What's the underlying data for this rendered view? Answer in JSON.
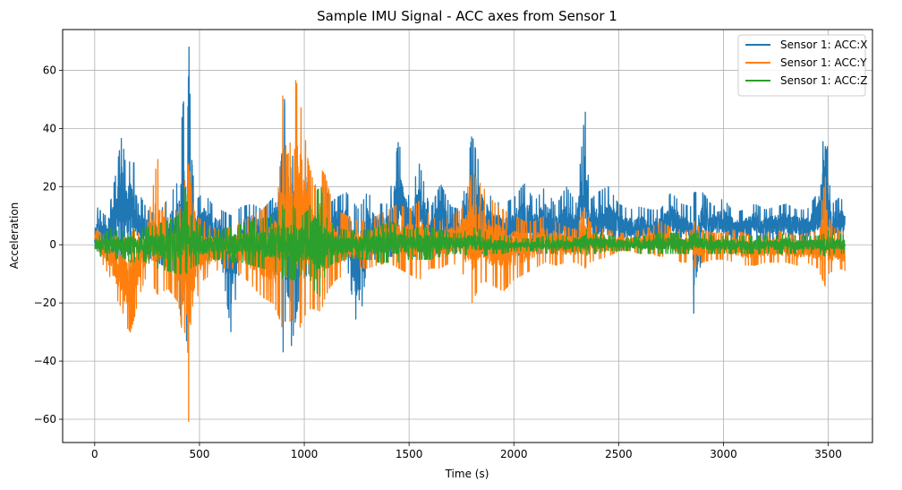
{
  "chart_data": {
    "type": "line",
    "title": "Sample IMU Signal - ACC axes from Sensor 1",
    "xlabel": "Time (s)",
    "ylabel": "Acceleration",
    "xlim": [
      -153,
      3711
    ],
    "ylim": [
      -68,
      74
    ],
    "xticks": [
      0,
      500,
      1000,
      1500,
      2000,
      2500,
      3000,
      3500
    ],
    "xtick_labels": [
      "0",
      "500",
      "1000",
      "1500",
      "2000",
      "2500",
      "3000",
      "3500"
    ],
    "yticks": [
      -60,
      -40,
      -20,
      0,
      20,
      40,
      60
    ],
    "ytick_labels": [
      "−60",
      "−40",
      "−20",
      "0",
      "20",
      "40",
      "60"
    ],
    "grid": true,
    "legend_position": "top-right",
    "series": [
      {
        "name": "Sensor 1: ACC:X",
        "color": "#1f77b4",
        "envelope_x": [
          0,
          10,
          50,
          80,
          100,
          130,
          150,
          170,
          190,
          210,
          250,
          300,
          350,
          400,
          420,
          430,
          440,
          450,
          460,
          480,
          520,
          560,
          600,
          650,
          700,
          750,
          800,
          850,
          880,
          900,
          910,
          920,
          940,
          960,
          990,
          1020,
          1050,
          1080,
          1100,
          1120,
          1150,
          1200,
          1260,
          1300,
          1350,
          1400,
          1450,
          1500,
          1550,
          1600,
          1650,
          1700,
          1750,
          1800,
          1850,
          1900,
          1950,
          2000,
          2050,
          2100,
          2150,
          2200,
          2250,
          2300,
          2340,
          2360,
          2400,
          2450,
          2500,
          2550,
          2600,
          2650,
          2700,
          2750,
          2800,
          2850,
          2860,
          2900,
          2950,
          3000,
          3050,
          3100,
          3150,
          3200,
          3250,
          3300,
          3350,
          3400,
          3450,
          3490,
          3500,
          3520,
          3550,
          3580
        ],
        "envelope_max": [
          3,
          13,
          10,
          16,
          24,
          38,
          26,
          29,
          28,
          18,
          12,
          10,
          16,
          22,
          48,
          51,
          30,
          68,
          32,
          15,
          18,
          14,
          12,
          10,
          13,
          14,
          12,
          16,
          30,
          64,
          38,
          22,
          28,
          40,
          28,
          20,
          15,
          17,
          22,
          14,
          16,
          18,
          12,
          18,
          14,
          14,
          36,
          16,
          28,
          12,
          21,
          13,
          12,
          38,
          23,
          15,
          14,
          16,
          21,
          15,
          20,
          13,
          20,
          14,
          47,
          15,
          18,
          20,
          14,
          12,
          13,
          12,
          12,
          18,
          14,
          13,
          18,
          18,
          13,
          16,
          11,
          12,
          14,
          12,
          13,
          14,
          12,
          12,
          18,
          46,
          24,
          14,
          16,
          15
        ],
        "envelope_min": [
          1,
          -2,
          -4,
          -3,
          -5,
          -6,
          -4,
          -3,
          -2,
          -3,
          -4,
          -6,
          -8,
          -10,
          -40,
          -38,
          -32,
          -14,
          -10,
          -6,
          -5,
          -4,
          -3,
          -30,
          -4,
          -4,
          -3,
          -6,
          -12,
          -38,
          -25,
          -30,
          -35,
          -25,
          -12,
          -10,
          -8,
          -8,
          -6,
          -5,
          -4,
          -5,
          -32,
          -5,
          -5,
          -4,
          -4,
          -4,
          -4,
          -3,
          -3,
          -2,
          -3,
          -5,
          -3,
          -3,
          -4,
          -4,
          -3,
          -3,
          -3,
          -2,
          -2,
          -3,
          -2,
          -1,
          -1,
          -2,
          -2,
          -1,
          0,
          -1,
          -1,
          0,
          0,
          0,
          -28,
          0,
          1,
          0,
          1,
          0,
          1,
          0,
          1,
          0,
          1,
          0,
          1,
          0,
          -2,
          0,
          0,
          1
        ]
      },
      {
        "name": "Sensor 1: ACC:Y",
        "color": "#ff7f0e",
        "envelope_x": [
          0,
          10,
          50,
          80,
          100,
          130,
          150,
          170,
          190,
          210,
          250,
          300,
          350,
          400,
          420,
          430,
          440,
          450,
          460,
          480,
          520,
          560,
          600,
          650,
          700,
          750,
          800,
          850,
          880,
          900,
          910,
          920,
          940,
          960,
          990,
          1020,
          1050,
          1080,
          1100,
          1120,
          1150,
          1200,
          1260,
          1300,
          1350,
          1400,
          1450,
          1500,
          1550,
          1600,
          1650,
          1700,
          1750,
          1800,
          1850,
          1900,
          1950,
          2000,
          2050,
          2100,
          2150,
          2200,
          2250,
          2300,
          2340,
          2360,
          2400,
          2450,
          2500,
          2550,
          2600,
          2650,
          2700,
          2750,
          2800,
          2850,
          2860,
          2900,
          2950,
          3000,
          3050,
          3100,
          3150,
          3200,
          3250,
          3300,
          3350,
          3400,
          3450,
          3490,
          3500,
          3520,
          3550,
          3580
        ],
        "envelope_max": [
          4,
          5,
          3,
          2,
          3,
          2,
          3,
          4,
          5,
          4,
          6,
          30,
          8,
          12,
          15,
          22,
          25,
          28,
          20,
          10,
          8,
          6,
          5,
          6,
          8,
          10,
          12,
          16,
          20,
          56,
          35,
          30,
          38,
          57,
          45,
          28,
          20,
          26,
          24,
          18,
          12,
          10,
          8,
          8,
          10,
          12,
          14,
          12,
          15,
          10,
          8,
          10,
          12,
          25,
          20,
          15,
          12,
          10,
          8,
          8,
          10,
          8,
          6,
          5,
          14,
          8,
          6,
          5,
          4,
          4,
          5,
          6,
          8,
          6,
          5,
          5,
          8,
          5,
          4,
          4,
          5,
          4,
          3,
          4,
          5,
          4,
          3,
          4,
          5,
          25,
          10,
          6,
          5,
          4
        ],
        "envelope_min": [
          2,
          -3,
          -8,
          -12,
          -18,
          -22,
          -28,
          -30,
          -25,
          -18,
          -10,
          -17,
          -15,
          -20,
          -32,
          -30,
          -55,
          -62,
          -40,
          -20,
          -12,
          -10,
          -8,
          -8,
          -10,
          -14,
          -18,
          -20,
          -25,
          -30,
          -26,
          -28,
          -25,
          -33,
          -26,
          -22,
          -22,
          -23,
          -18,
          -15,
          -12,
          -10,
          -8,
          -8,
          -7,
          -6,
          -8,
          -10,
          -12,
          -8,
          -8,
          -6,
          -8,
          -20,
          -12,
          -14,
          -16,
          -12,
          -10,
          -8,
          -6,
          -7,
          -6,
          -6,
          -8,
          -6,
          -5,
          -4,
          -2,
          -2,
          -3,
          -3,
          -4,
          -4,
          -6,
          -6,
          -8,
          -6,
          -5,
          -5,
          -6,
          -7,
          -7,
          -6,
          -6,
          -6,
          -7,
          -6,
          -8,
          -15,
          -10,
          -9,
          -8,
          -9
        ]
      },
      {
        "name": "Sensor 1: ACC:Z",
        "color": "#2ca02c",
        "envelope_x": [
          0,
          10,
          50,
          80,
          100,
          130,
          150,
          170,
          190,
          210,
          250,
          300,
          350,
          400,
          420,
          430,
          440,
          450,
          460,
          480,
          520,
          560,
          600,
          650,
          700,
          750,
          800,
          850,
          880,
          900,
          910,
          920,
          940,
          960,
          990,
          1020,
          1050,
          1080,
          1100,
          1120,
          1150,
          1200,
          1260,
          1300,
          1350,
          1400,
          1450,
          1500,
          1550,
          1600,
          1650,
          1700,
          1750,
          1800,
          1850,
          1900,
          1950,
          2000,
          2050,
          2100,
          2150,
          2200,
          2250,
          2300,
          2340,
          2360,
          2400,
          2450,
          2500,
          2550,
          2600,
          2650,
          2700,
          2750,
          2800,
          2850,
          2860,
          2900,
          2950,
          3000,
          3050,
          3100,
          3150,
          3200,
          3250,
          3300,
          3350,
          3400,
          3450,
          3490,
          3500,
          3520,
          3550,
          3580
        ],
        "envelope_max": [
          1,
          3,
          4,
          6,
          5,
          4,
          5,
          6,
          5,
          5,
          6,
          7,
          8,
          10,
          18,
          20,
          15,
          12,
          10,
          8,
          6,
          5,
          5,
          6,
          7,
          8,
          9,
          10,
          12,
          14,
          10,
          12,
          14,
          12,
          10,
          12,
          18,
          20,
          10,
          8,
          6,
          5,
          5,
          5,
          6,
          8,
          7,
          5,
          6,
          6,
          5,
          4,
          4,
          6,
          5,
          3,
          3,
          2,
          2,
          2,
          3,
          3,
          3,
          2,
          6,
          4,
          4,
          3,
          3,
          2,
          3,
          3,
          4,
          4,
          4,
          3,
          4,
          4,
          3,
          3,
          3,
          3,
          3,
          3,
          3,
          4,
          3,
          3,
          3,
          4,
          5,
          4,
          4,
          3
        ],
        "envelope_min": [
          -1,
          -3,
          -5,
          -6,
          -5,
          -4,
          -5,
          -6,
          -6,
          -5,
          -6,
          -8,
          -9,
          -10,
          -10,
          -9,
          -10,
          -9,
          -8,
          -7,
          -6,
          -5,
          -5,
          -6,
          -6,
          -7,
          -8,
          -9,
          -10,
          -12,
          -10,
          -11,
          -12,
          -12,
          -10,
          -10,
          -16,
          -18,
          -10,
          -7,
          -6,
          -5,
          -5,
          -5,
          -6,
          -6,
          -6,
          -5,
          -5,
          -5,
          -4,
          -3,
          -3,
          -4,
          -4,
          -3,
          -3,
          -2,
          -2,
          -2,
          -3,
          -3,
          -3,
          -2,
          -4,
          -3,
          -3,
          -2,
          -2,
          -2,
          -3,
          -3,
          -3,
          -3,
          -3,
          -3,
          -3,
          -3,
          -3,
          -3,
          -3,
          -3,
          -3,
          -3,
          -3,
          -3,
          -3,
          -3,
          -3,
          -4,
          -4,
          -3,
          -3,
          -3
        ]
      }
    ]
  }
}
